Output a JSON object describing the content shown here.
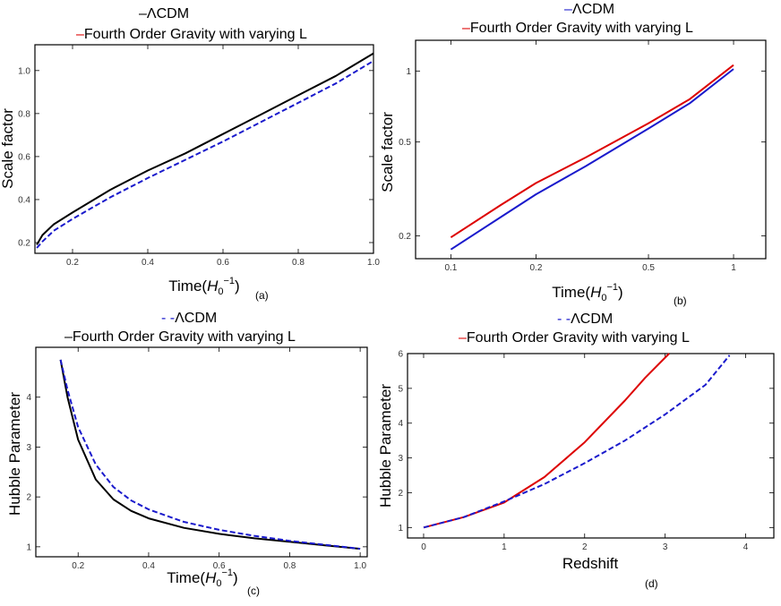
{
  "chart_data": [
    {
      "type": "line",
      "panel_label": "(a)",
      "xlabel": "Time(H0−1)",
      "ylabel": "Scale factor",
      "xlim": [
        0.1,
        1.0
      ],
      "ylim": [
        0.15,
        1.12
      ],
      "xticks": [
        0.2,
        0.4,
        0.6,
        0.8,
        1.0
      ],
      "xtick_labels": [
        "0.2",
        "0.4",
        "0.6",
        "0.8",
        "1.0"
      ],
      "yticks": [
        0.2,
        0.4,
        0.6,
        0.8,
        1.0
      ],
      "ytick_labels": [
        "0.2",
        "0.4",
        "0.6",
        "0.8",
        "1.0"
      ],
      "legend": [
        {
          "label": "ΛCDM",
          "marker": "-",
          "color": "#000000"
        },
        {
          "label": "Fourth Order Gravity with varying L",
          "marker": "-",
          "color": "#dd0000"
        }
      ],
      "series": [
        {
          "name": "solid",
          "color": "#000000",
          "dash": false,
          "x": [
            0.105,
            0.12,
            0.15,
            0.2,
            0.3,
            0.4,
            0.5,
            0.6,
            0.7,
            0.8,
            0.9,
            1.0
          ],
          "y": [
            0.19,
            0.235,
            0.285,
            0.34,
            0.445,
            0.535,
            0.615,
            0.705,
            0.795,
            0.885,
            0.975,
            1.08
          ]
        },
        {
          "name": "dashed",
          "color": "#1a1acc",
          "dash": true,
          "x": [
            0.105,
            0.12,
            0.15,
            0.2,
            0.3,
            0.4,
            0.5,
            0.6,
            0.7,
            0.8,
            0.9,
            1.0
          ],
          "y": [
            0.175,
            0.205,
            0.255,
            0.31,
            0.41,
            0.5,
            0.585,
            0.67,
            0.76,
            0.85,
            0.94,
            1.045
          ]
        }
      ]
    },
    {
      "type": "line",
      "panel_label": "(b)",
      "xlabel": "Time(H0−1)",
      "ylabel": "Scale factor",
      "xscale": "log",
      "yscale": "log",
      "xlim": [
        0.075,
        1.3
      ],
      "ylim": [
        0.16,
        1.35
      ],
      "xticks": [
        0.1,
        0.2,
        0.5,
        1
      ],
      "xtick_labels": [
        "0.1",
        "0.2",
        "0.5",
        "1"
      ],
      "yticks": [
        0.2,
        0.5,
        1
      ],
      "ytick_labels": [
        "0.2",
        "0.5",
        "1"
      ],
      "legend": [
        {
          "label": "ΛCDM",
          "marker": "-",
          "color": "#1a1acc"
        },
        {
          "label": "Fourth Order Gravity with varying L",
          "marker": "-",
          "color": "#dd0000"
        }
      ],
      "series": [
        {
          "name": "red",
          "color": "#dd0000",
          "dash": false,
          "x": [
            0.1,
            0.15,
            0.2,
            0.3,
            0.5,
            0.7,
            1.0
          ],
          "y": [
            0.197,
            0.27,
            0.335,
            0.43,
            0.6,
            0.76,
            1.06
          ]
        },
        {
          "name": "blue",
          "color": "#1a1acc",
          "dash": false,
          "x": [
            0.1,
            0.15,
            0.2,
            0.3,
            0.5,
            0.7,
            1.0
          ],
          "y": [
            0.175,
            0.24,
            0.3,
            0.395,
            0.57,
            0.73,
            1.02
          ]
        }
      ]
    },
    {
      "type": "line",
      "panel_label": "(c)",
      "xlabel": "Time(H0−1)",
      "ylabel": "Hubble Parameter",
      "xlim": [
        0.08,
        1.02
      ],
      "ylim": [
        0.8,
        5.0
      ],
      "xticks": [
        0.2,
        0.4,
        0.6,
        0.8,
        1.0
      ],
      "xtick_labels": [
        "0.2",
        "0.4",
        "0.6",
        "0.8",
        "1.0"
      ],
      "yticks": [
        1,
        2,
        3,
        4
      ],
      "ytick_labels": [
        "1",
        "2",
        "3",
        "4"
      ],
      "legend": [
        {
          "label": "ΛCDM",
          "marker": "--",
          "color": "#1a1acc"
        },
        {
          "label": "Fourth Order Gravity with varying L",
          "marker": "-",
          "color": "#000000"
        }
      ],
      "series": [
        {
          "name": "solid",
          "color": "#000000",
          "dash": false,
          "x": [
            0.15,
            0.17,
            0.2,
            0.25,
            0.3,
            0.35,
            0.4,
            0.5,
            0.6,
            0.7,
            0.8,
            0.9,
            1.0
          ],
          "y": [
            4.75,
            4.0,
            3.15,
            2.35,
            1.95,
            1.72,
            1.57,
            1.38,
            1.26,
            1.17,
            1.1,
            1.03,
            0.96
          ]
        },
        {
          "name": "dashed",
          "color": "#1a1acc",
          "dash": true,
          "x": [
            0.15,
            0.17,
            0.2,
            0.25,
            0.3,
            0.35,
            0.4,
            0.5,
            0.6,
            0.7,
            0.8,
            0.9,
            1.0
          ],
          "y": [
            4.75,
            4.15,
            3.4,
            2.65,
            2.2,
            1.93,
            1.75,
            1.5,
            1.34,
            1.22,
            1.12,
            1.04,
            0.96
          ]
        }
      ]
    },
    {
      "type": "line",
      "panel_label": "(d)",
      "xlabel": "Redshift",
      "ylabel": "Hubble Parameter",
      "xlim": [
        -0.2,
        4.35
      ],
      "ylim": [
        0.7,
        6.0
      ],
      "xticks": [
        0,
        1,
        2,
        3,
        4
      ],
      "xtick_labels": [
        "0",
        "1",
        "2",
        "3",
        "4"
      ],
      "yticks": [
        1,
        2,
        3,
        4,
        5,
        6
      ],
      "ytick_labels": [
        "1",
        "2",
        "3",
        "4",
        "5",
        "6"
      ],
      "legend": [
        {
          "label": "ΛCDM",
          "marker": "--",
          "color": "#1a1acc"
        },
        {
          "label": "Fourth Order Gravity with varying L",
          "marker": "-",
          "color": "#dd0000"
        }
      ],
      "series": [
        {
          "name": "red",
          "color": "#dd0000",
          "dash": false,
          "x": [
            0,
            0.5,
            1.0,
            1.5,
            2.0,
            2.5,
            2.75,
            3.05
          ],
          "y": [
            1.0,
            1.3,
            1.72,
            2.45,
            3.45,
            4.65,
            5.3,
            6.0
          ]
        },
        {
          "name": "dashed",
          "color": "#1a1acc",
          "dash": true,
          "x": [
            0,
            0.5,
            1.0,
            1.5,
            2.0,
            2.5,
            3.0,
            3.5,
            3.8
          ],
          "y": [
            1.0,
            1.3,
            1.75,
            2.25,
            2.85,
            3.5,
            4.25,
            5.1,
            5.95
          ]
        }
      ]
    }
  ]
}
